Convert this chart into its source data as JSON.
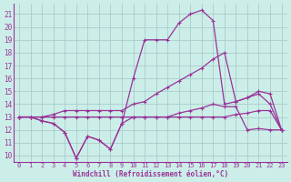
{
  "xlabel": "Windchill (Refroidissement éolien,°C)",
  "xlim": [
    -0.5,
    23.5
  ],
  "ylim": [
    9.5,
    21.8
  ],
  "yticks": [
    10,
    11,
    12,
    13,
    14,
    15,
    16,
    17,
    18,
    19,
    20,
    21
  ],
  "xticks": [
    0,
    1,
    2,
    3,
    4,
    5,
    6,
    7,
    8,
    9,
    10,
    11,
    12,
    13,
    14,
    15,
    16,
    17,
    18,
    19,
    20,
    21,
    22,
    23
  ],
  "background_color": "#cceee8",
  "grid_color": "#aacccc",
  "line_color": "#993399",
  "series": {
    "line_volatile": [
      13.0,
      13.0,
      12.7,
      12.5,
      11.8,
      9.8,
      11.5,
      11.2,
      10.5,
      12.5,
      13.0,
      13.0,
      13.0,
      13.0,
      13.3,
      13.5,
      13.7,
      14.0,
      13.8,
      13.8,
      12.0,
      12.1,
      12.0,
      12.0
    ],
    "line_spike": [
      13.0,
      13.0,
      12.7,
      12.5,
      11.8,
      9.8,
      11.5,
      11.2,
      10.5,
      12.5,
      16.0,
      19.0,
      19.0,
      19.0,
      20.3,
      21.0,
      21.3,
      20.5,
      14.0,
      14.2,
      14.5,
      15.0,
      14.8,
      12.0
    ],
    "line_diagonal": [
      13.0,
      13.0,
      13.0,
      13.2,
      13.5,
      13.5,
      13.5,
      13.5,
      13.5,
      13.5,
      14.0,
      14.2,
      14.8,
      15.3,
      15.8,
      16.3,
      16.8,
      17.5,
      18.0,
      14.2,
      14.5,
      14.8,
      14.0,
      12.0
    ],
    "line_flat": [
      13.0,
      13.0,
      13.0,
      13.0,
      13.0,
      13.0,
      13.0,
      13.0,
      13.0,
      13.0,
      13.0,
      13.0,
      13.0,
      13.0,
      13.0,
      13.0,
      13.0,
      13.0,
      13.0,
      13.2,
      13.3,
      13.5,
      13.5,
      12.0
    ]
  }
}
